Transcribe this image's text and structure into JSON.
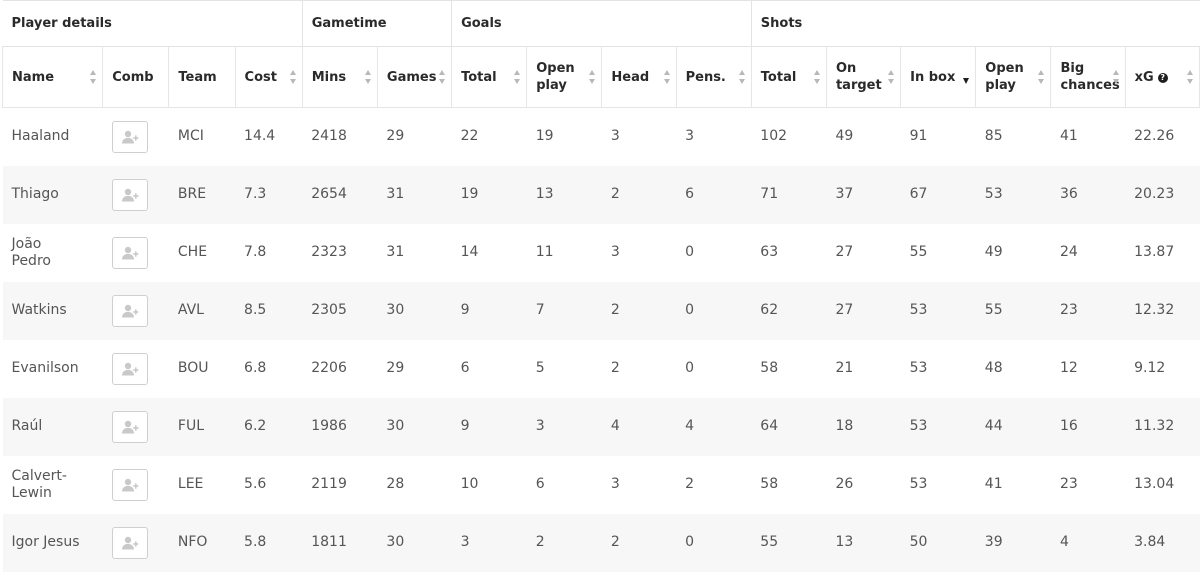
{
  "groups": [
    {
      "label": "Player details",
      "span": 4
    },
    {
      "label": "Gametime",
      "span": 2
    },
    {
      "label": "Goals",
      "span": 4
    },
    {
      "label": "Shots",
      "span": 6
    }
  ],
  "columns": [
    {
      "key": "name",
      "label": "Name",
      "sortable": true
    },
    {
      "key": "comb",
      "label": "Comb",
      "sortable": false
    },
    {
      "key": "team",
      "label": "Team",
      "sortable": false
    },
    {
      "key": "cost",
      "label": "Cost",
      "sortable": true
    },
    {
      "key": "mins",
      "label": "Mins",
      "sortable": true
    },
    {
      "key": "games",
      "label": "Games",
      "sortable": true
    },
    {
      "key": "goals_total",
      "label": "Total",
      "sortable": true
    },
    {
      "key": "goals_open",
      "label": "Open play",
      "sortable": true
    },
    {
      "key": "head",
      "label": "Head",
      "sortable": true
    },
    {
      "key": "pens",
      "label": "Pens.",
      "sortable": true
    },
    {
      "key": "shots_total",
      "label": "Total",
      "sortable": true
    },
    {
      "key": "on_target",
      "label": "On target",
      "sortable": true
    },
    {
      "key": "in_box",
      "label": "In box",
      "sortable": true,
      "active_sort": "desc"
    },
    {
      "key": "shots_open",
      "label": "Open play",
      "sortable": true
    },
    {
      "key": "big_chances",
      "label": "Big chances",
      "sortable": true
    },
    {
      "key": "xg",
      "label": "xG",
      "sortable": true,
      "info_icon": "question-icon"
    }
  ],
  "rows": [
    {
      "name": "Haaland",
      "team": "MCI",
      "cost": "14.4",
      "mins": "2418",
      "games": "29",
      "goals_total": "22",
      "goals_open": "19",
      "head": "3",
      "pens": "3",
      "shots_total": "102",
      "on_target": "49",
      "in_box": "91",
      "shots_open": "85",
      "big_chances": "41",
      "xg": "22.26"
    },
    {
      "name": "Thiago",
      "team": "BRE",
      "cost": "7.3",
      "mins": "2654",
      "games": "31",
      "goals_total": "19",
      "goals_open": "13",
      "head": "2",
      "pens": "6",
      "shots_total": "71",
      "on_target": "37",
      "in_box": "67",
      "shots_open": "53",
      "big_chances": "36",
      "xg": "20.23"
    },
    {
      "name": "João Pedro",
      "team": "CHE",
      "cost": "7.8",
      "mins": "2323",
      "games": "31",
      "goals_total": "14",
      "goals_open": "11",
      "head": "3",
      "pens": "0",
      "shots_total": "63",
      "on_target": "27",
      "in_box": "55",
      "shots_open": "49",
      "big_chances": "24",
      "xg": "13.87"
    },
    {
      "name": "Watkins",
      "team": "AVL",
      "cost": "8.5",
      "mins": "2305",
      "games": "30",
      "goals_total": "9",
      "goals_open": "7",
      "head": "2",
      "pens": "0",
      "shots_total": "62",
      "on_target": "27",
      "in_box": "53",
      "shots_open": "55",
      "big_chances": "23",
      "xg": "12.32"
    },
    {
      "name": "Evanilson",
      "team": "BOU",
      "cost": "6.8",
      "mins": "2206",
      "games": "29",
      "goals_total": "6",
      "goals_open": "5",
      "head": "2",
      "pens": "0",
      "shots_total": "58",
      "on_target": "21",
      "in_box": "53",
      "shots_open": "48",
      "big_chances": "12",
      "xg": "9.12"
    },
    {
      "name": "Raúl",
      "team": "FUL",
      "cost": "6.2",
      "mins": "1986",
      "games": "30",
      "goals_total": "9",
      "goals_open": "3",
      "head": "4",
      "pens": "4",
      "shots_total": "64",
      "on_target": "18",
      "in_box": "53",
      "shots_open": "44",
      "big_chances": "16",
      "xg": "11.32"
    },
    {
      "name": "Calvert-Lewin",
      "team": "LEE",
      "cost": "5.6",
      "mins": "2119",
      "games": "28",
      "goals_total": "10",
      "goals_open": "6",
      "head": "3",
      "pens": "2",
      "shots_total": "58",
      "on_target": "26",
      "in_box": "53",
      "shots_open": "41",
      "big_chances": "23",
      "xg": "13.04"
    },
    {
      "name": "Igor Jesus",
      "team": "NFO",
      "cost": "5.8",
      "mins": "1811",
      "games": "30",
      "goals_total": "3",
      "goals_open": "2",
      "head": "2",
      "pens": "0",
      "shots_total": "55",
      "on_target": "13",
      "in_box": "50",
      "shots_open": "39",
      "big_chances": "4",
      "xg": "3.84"
    }
  ],
  "comb_icon": "add-user-icon",
  "colors": {
    "stripe": "#f7f7f7",
    "border": "#e3e3e3",
    "header_text": "#2a2a2a",
    "cell_text": "#555555"
  }
}
